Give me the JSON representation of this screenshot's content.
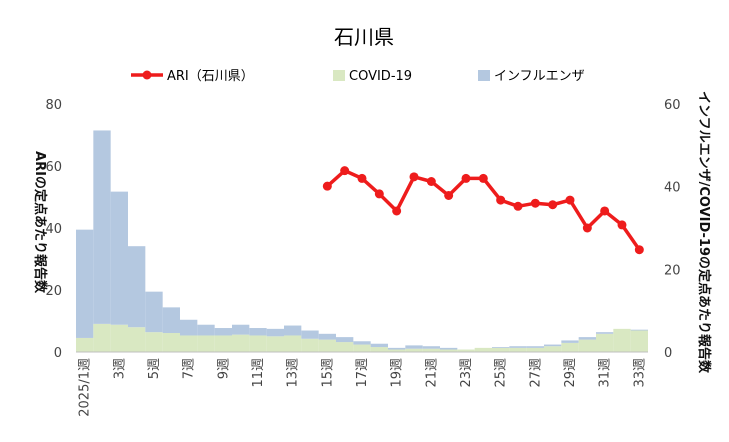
{
  "chart_data": {
    "type": "bar+line",
    "title": "石川県",
    "ylabel_left": "ARIの定点あたり報告数",
    "ylabel_right": "インフルエンザ/COVID-19の定点あたり報告数",
    "ylim_left": [
      0,
      80
    ],
    "ylim_right": [
      0,
      60
    ],
    "yticks_left": [
      0,
      20,
      40,
      60,
      80
    ],
    "yticks_right": [
      0,
      20,
      40,
      60
    ],
    "weeks": [
      "2025/1週",
      "2週",
      "3週",
      "4週",
      "5週",
      "6週",
      "7週",
      "8週",
      "9週",
      "10週",
      "11週",
      "12週",
      "13週",
      "14週",
      "15週",
      "16週",
      "17週",
      "18週",
      "19週",
      "20週",
      "21週",
      "22週",
      "23週",
      "24週",
      "25週",
      "26週",
      "27週",
      "28週",
      "29週",
      "30週",
      "31週",
      "32週",
      "33週"
    ],
    "x_tick_labels": [
      "2025/1週",
      "",
      "3週",
      "",
      "5週",
      "",
      "7週",
      "",
      "9週",
      "",
      "11週",
      "",
      "13週",
      "",
      "15週",
      "",
      "17週",
      "",
      "19週",
      "",
      "21週",
      "",
      "23週",
      "",
      "25週",
      "",
      "27週",
      "",
      "29週",
      "",
      "31週",
      "",
      "33週"
    ],
    "legend": [
      "ARI（石川県）",
      "COVID-19",
      "インフルエンザ"
    ],
    "colors": {
      "ari": "#ee1c1c",
      "covid": "#d9e8c2",
      "flu": "#b4c8e0"
    },
    "series": [
      {
        "name": "ARI（石川県）",
        "axis": "left",
        "values": [
          null,
          null,
          null,
          null,
          null,
          null,
          null,
          null,
          null,
          null,
          null,
          null,
          null,
          null,
          53.5,
          58.5,
          56,
          51,
          45.5,
          56.5,
          55,
          50.5,
          56,
          56,
          49,
          47,
          48,
          47.5,
          49,
          40,
          45.5,
          41,
          33
        ]
      },
      {
        "name": "COVID-19",
        "axis": "right",
        "values": [
          3.4,
          6.8,
          6.6,
          6.0,
          4.8,
          4.6,
          4.0,
          4.0,
          4.0,
          4.2,
          4.0,
          3.8,
          4.0,
          3.2,
          3.0,
          2.4,
          1.8,
          1.2,
          0.6,
          0.8,
          0.8,
          0.6,
          0.6,
          1.0,
          1.0,
          1.0,
          1.0,
          1.4,
          2.2,
          3.0,
          4.4,
          5.6,
          5.2
        ]
      },
      {
        "name": "インフルエンザ",
        "axis": "right",
        "values": [
          29.6,
          53.6,
          38.8,
          25.6,
          14.6,
          10.8,
          7.8,
          6.6,
          5.8,
          6.6,
          5.8,
          5.6,
          6.4,
          5.2,
          4.4,
          3.6,
          2.6,
          2.0,
          1.0,
          1.6,
          1.4,
          1.0,
          0.6,
          1.0,
          1.2,
          1.4,
          1.4,
          1.8,
          2.8,
          3.6,
          4.8,
          5.6,
          5.4
        ]
      }
    ]
  }
}
